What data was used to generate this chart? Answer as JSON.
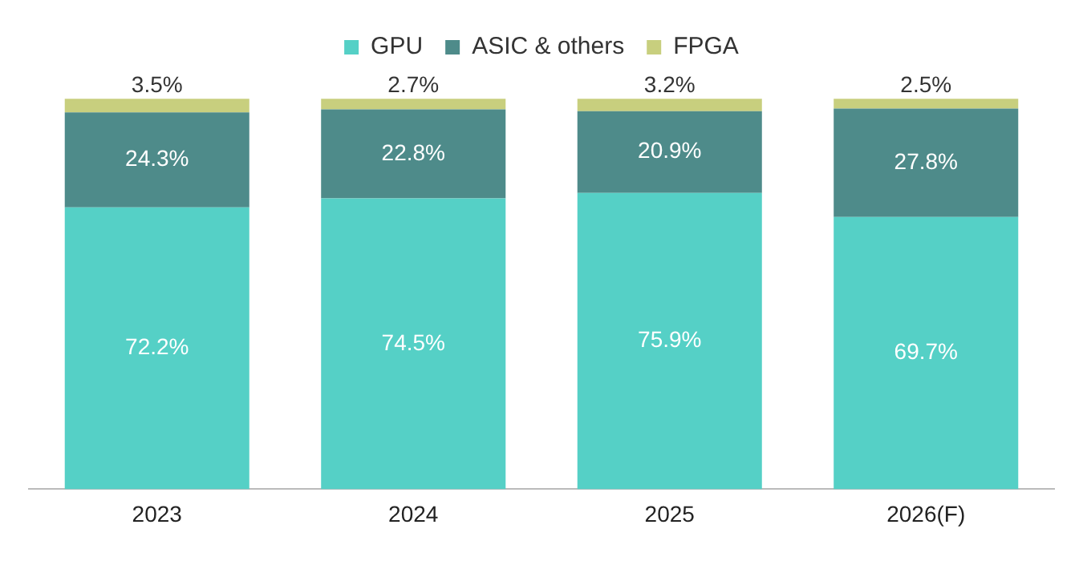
{
  "chart_data": {
    "type": "bar",
    "stacked": true,
    "legend": "top",
    "grid": false,
    "categories": [
      "2023",
      "2024",
      "2025",
      "2026(F)"
    ],
    "series": [
      {
        "name": "GPU",
        "color": "#55d0c6",
        "values": [
          72.2,
          74.5,
          75.9,
          69.7
        ],
        "value_labels": [
          "72.2%",
          "74.5%",
          "75.9%",
          "69.7%"
        ]
      },
      {
        "name": "ASIC & others",
        "color": "#4e8b8a",
        "values": [
          24.3,
          22.8,
          20.9,
          27.8
        ],
        "value_labels": [
          "24.3%",
          "22.8%",
          "20.9%",
          "27.8%"
        ]
      },
      {
        "name": "FPGA",
        "color": "#c8cf7e",
        "values": [
          3.5,
          2.7,
          3.2,
          2.5
        ],
        "value_labels": [
          "3.5%",
          "2.7%",
          "3.2%",
          "2.5%"
        ]
      }
    ]
  }
}
